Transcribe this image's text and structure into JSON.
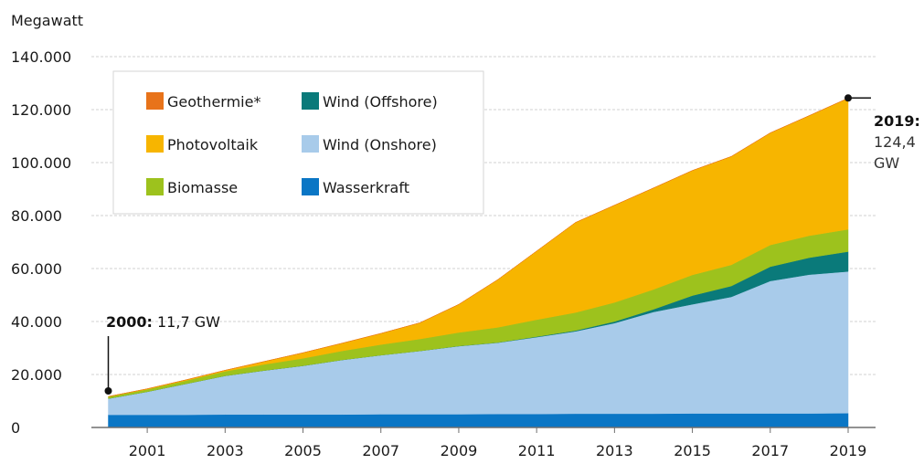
{
  "chart_data": {
    "type": "area",
    "stacked": true,
    "ylabel": "Megawatt",
    "ylim": [
      0,
      140000
    ],
    "y_ticks": [
      0,
      20000,
      40000,
      60000,
      80000,
      100000,
      120000,
      140000
    ],
    "y_tick_labels": [
      "0",
      "20.000",
      "40.000",
      "60.000",
      "80.000",
      "100.000",
      "120.000",
      "140.000"
    ],
    "x_range": [
      2000,
      2019
    ],
    "x_tick_labels": [
      "2001",
      "2003",
      "2005",
      "2007",
      "2009",
      "2011",
      "2013",
      "2015",
      "2017",
      "2019"
    ],
    "grid": true,
    "legend_position": "top-left",
    "x": [
      2000,
      2001,
      2002,
      2003,
      2004,
      2005,
      2006,
      2007,
      2008,
      2009,
      2010,
      2011,
      2012,
      2013,
      2014,
      2015,
      2016,
      2017,
      2018,
      2019
    ],
    "series": [
      {
        "name": "Wasserkraft",
        "color": "#0a76c5",
        "values": [
          4800,
          4800,
          4800,
          4900,
          4900,
          4900,
          4900,
          5000,
          5000,
          5000,
          5100,
          5100,
          5200,
          5200,
          5200,
          5300,
          5300,
          5300,
          5300,
          5400
        ]
      },
      {
        "name": "Wind (Onshore)",
        "color": "#a8cbea",
        "values": [
          6100,
          8700,
          11700,
          14600,
          16600,
          18400,
          20600,
          22300,
          23900,
          25700,
          26900,
          29000,
          31100,
          34200,
          38400,
          41200,
          44000,
          50000,
          52400,
          53500
        ]
      },
      {
        "name": "Wind (Offshore)",
        "color": "#0a7a7a",
        "values": [
          0,
          0,
          0,
          0,
          0,
          0,
          0,
          0,
          0,
          60,
          90,
          190,
          300,
          600,
          1000,
          3300,
          4100,
          5400,
          6400,
          7500
        ]
      },
      {
        "name": "Biomasse",
        "color": "#9dc21d",
        "values": [
          700,
          900,
          1200,
          1700,
          2300,
          2800,
          3400,
          4000,
          4500,
          5100,
          5700,
          6400,
          6800,
          7200,
          7500,
          7800,
          8000,
          8200,
          8300,
          8400
        ]
      },
      {
        "name": "Photovoltaik",
        "color": "#f7b500",
        "values": [
          100,
          200,
          300,
          400,
          1100,
          2100,
          2900,
          4200,
          6100,
          10600,
          18000,
          25900,
          34000,
          36700,
          38300,
          39400,
          40900,
          42300,
          45300,
          49500
        ]
      },
      {
        "name": "Geothermie*",
        "color": "#e8731a",
        "values": [
          0,
          0,
          0,
          0,
          0,
          0,
          0,
          3,
          3,
          8,
          8,
          8,
          12,
          24,
          24,
          31,
          38,
          38,
          42,
          47
        ]
      }
    ],
    "legend": [
      [
        "Geothermie*",
        "Wind (Offshore)"
      ],
      [
        "Photovoltaik",
        "Wind (Onshore)"
      ],
      [
        "Biomasse",
        "Wasserkraft"
      ]
    ],
    "annotations": {
      "start": {
        "x": 2000,
        "value": 11700,
        "bold": "2000:",
        "text": "11,7 GW"
      },
      "end": {
        "x": 2019,
        "value": 124400,
        "bold": "2019:",
        "line1": "124,4",
        "line2": "GW"
      }
    }
  }
}
